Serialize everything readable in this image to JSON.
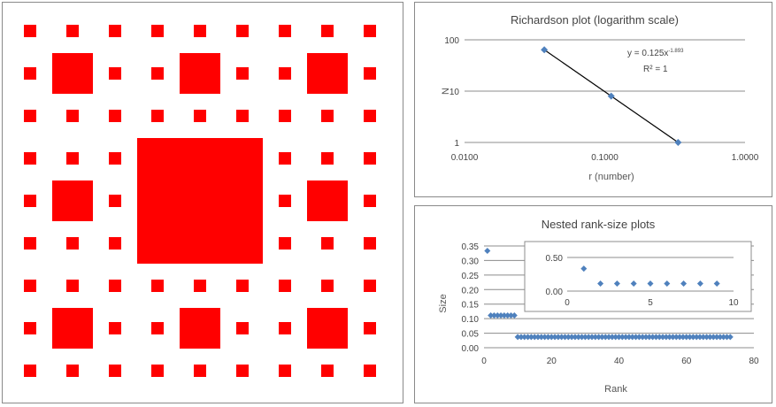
{
  "figure": {
    "fractal_color": "#ff0000",
    "fractal_description_type": "sierpinski-carpet"
  },
  "chart_data": [
    {
      "type": "scatter",
      "title": "Richardson plot (logarithm scale)",
      "xlabel": "r (number)",
      "ylabel": "N",
      "x_scale": "log",
      "y_scale": "log",
      "xlim": [
        0.01,
        1.0
      ],
      "ylim": [
        1,
        100
      ],
      "x_ticks": [
        "0.0100",
        "0.1000",
        "1.0000"
      ],
      "y_ticks": [
        "1",
        "10",
        "100"
      ],
      "grid": "horizontal",
      "series": [
        {
          "x": [
            0.037037,
            0.111111,
            0.333333
          ],
          "y": [
            64,
            8,
            1
          ],
          "color": "#4f81bd",
          "marker": "diamond"
        }
      ],
      "trendline": {
        "type": "power",
        "coefficient": 0.125,
        "exponent": -1.893,
        "color": "#000000",
        "equation_label": "y = 0.125x",
        "equation_exponent": "-1.893",
        "r2_label": "R² = 1"
      }
    },
    {
      "type": "scatter",
      "title": "Nested rank-size plots",
      "xlabel": "Rank",
      "ylabel": "Size",
      "xlim": [
        0,
        80
      ],
      "ylim": [
        0,
        0.35
      ],
      "x_ticks": [
        "0",
        "20",
        "40",
        "60",
        "80"
      ],
      "y_ticks": [
        "0.00",
        "0.05",
        "0.10",
        "0.15",
        "0.20",
        "0.25",
        "0.30",
        "0.35"
      ],
      "grid": "horizontal",
      "series": [
        {
          "rank": [
            1
          ],
          "size": [
            0.3333
          ],
          "color": "#4f81bd",
          "marker": "diamond"
        },
        {
          "rank_from": 2,
          "rank_to": 9,
          "size": 0.1111,
          "color": "#4f81bd",
          "marker": "diamond"
        },
        {
          "rank_from": 10,
          "rank_to": 73,
          "size": 0.037,
          "color": "#4f81bd",
          "marker": "diamond"
        }
      ],
      "inset": {
        "xlim": [
          0,
          10
        ],
        "ylim": [
          0,
          0.5
        ],
        "x_ticks": [
          "0",
          "5",
          "10"
        ],
        "y_ticks": [
          "0.00",
          "0.50"
        ],
        "rank": [
          1,
          2,
          3,
          4,
          5,
          6,
          7,
          8,
          9
        ],
        "size": [
          0.3333,
          0.1111,
          0.1111,
          0.1111,
          0.1111,
          0.1111,
          0.1111,
          0.1111,
          0.1111
        ]
      }
    }
  ]
}
